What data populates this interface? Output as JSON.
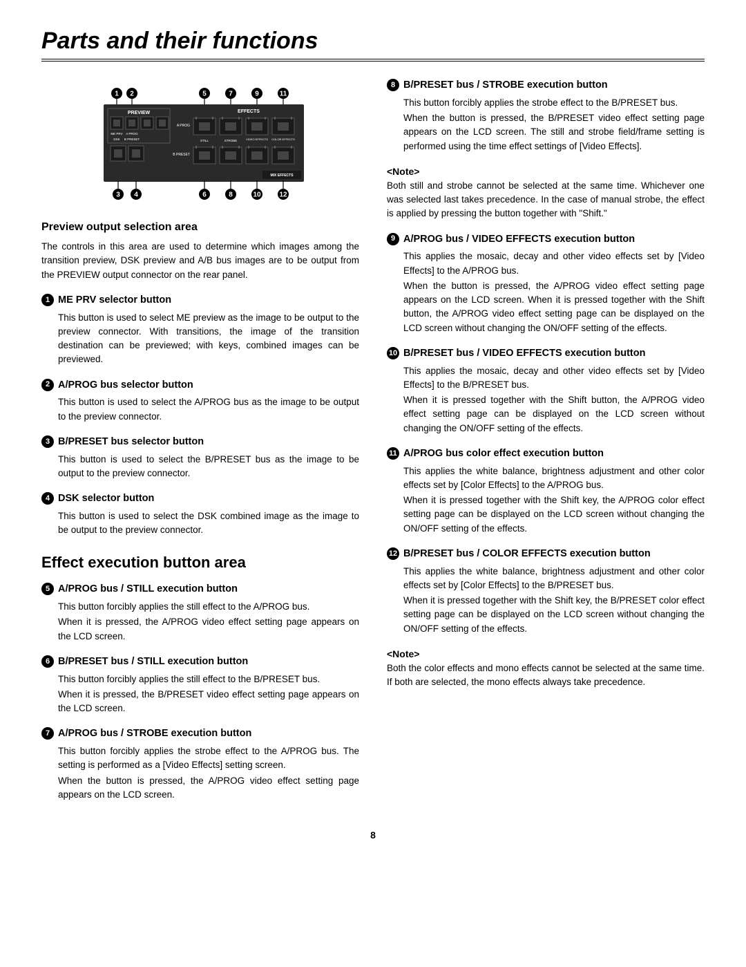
{
  "page_title": "Parts and their functions",
  "page_number": "8",
  "diagram": {
    "top_callouts": [
      "1",
      "2",
      "5",
      "7",
      "9",
      "11"
    ],
    "bottom_callouts": [
      "3",
      "4",
      "6",
      "8",
      "10",
      "12"
    ],
    "labels": {
      "preview": "PREVIEW",
      "effects": "EFFECTS",
      "me_prv": "ME PRV",
      "a_prog_top": "A PROG",
      "dsk": "DSK",
      "b_preset_left": "B PRESET",
      "a_prog": "A PROG",
      "b_preset": "B PRESET",
      "still": "STILL",
      "strobe": "STROBE",
      "video_effects": "VIDEO EFFECTS",
      "color_effects": "COLOR EFFECTS",
      "mix_effects": "MIX EFFECTS"
    }
  },
  "left_col": {
    "preview_area_title": "Preview output selection area",
    "preview_area_intro": "The controls in this area are used to determine which images among the transition preview, DSK preview and A/B bus images are to be output from the PREVIEW output connector on the rear panel.",
    "items": [
      {
        "num": "1",
        "title": "ME PRV selector button",
        "body": "This button is used to select ME preview as the image to be output to the preview connector.  With transitions, the image of the transition destination can be previewed; with keys, combined images can be previewed."
      },
      {
        "num": "2",
        "title": "A/PROG bus selector button",
        "body": "This button is used to select the A/PROG bus as the image to be output to the preview connector."
      },
      {
        "num": "3",
        "title": "B/PRESET bus selector button",
        "body": "This button is used to select the B/PRESET bus as the image to be output to the preview connector."
      },
      {
        "num": "4",
        "title": "DSK selector button",
        "body": "This button is used to select the DSK combined image as the image to be output to the preview connector."
      }
    ],
    "effect_heading": "Effect execution button area",
    "effect_items": [
      {
        "num": "5",
        "title": "A/PROG bus / STILL execution button",
        "body": "This button forcibly applies the still effect to the A/PROG bus.\nWhen it is pressed, the A/PROG video effect setting page appears on the LCD screen."
      },
      {
        "num": "6",
        "title": "B/PRESET bus / STILL execution button",
        "body": "This button forcibly applies the still effect to the B/PRESET bus.\nWhen it is pressed, the B/PRESET video effect setting page appears on the LCD screen."
      },
      {
        "num": "7",
        "title": "A/PROG bus / STROBE execution button",
        "body": "This button forcibly applies the strobe effect to the A/PROG bus.  The setting is performed as a [Video Effects] setting screen.\nWhen the button is pressed, the A/PROG video effect setting page appears on the LCD screen."
      }
    ]
  },
  "right_col": {
    "items": [
      {
        "num": "8",
        "title": "B/PRESET bus / STROBE execution button",
        "body": "This button forcibly applies the strobe effect to the B/PRESET bus.\nWhen the button is pressed, the B/PRESET video effect setting page appears on the LCD screen.  The still and strobe field/frame setting is performed using the time effect settings of [Video Effects]."
      }
    ],
    "note1_head": "<Note>",
    "note1_body": "Both still and strobe cannot be selected at the same time.  Whichever one was selected last takes precedence.  In the case of manual strobe, the effect is applied by pressing the button together with \"Shift.\"",
    "items2": [
      {
        "num": "9",
        "title": "A/PROG bus / VIDEO EFFECTS execution button",
        "body": "This applies the mosaic, decay and other video effects set by [Video Effects] to the A/PROG bus.\nWhen the button is pressed, the A/PROG video effect setting page appears on the LCD screen.  When it is pressed together with the Shift button, the A/PROG video effect setting page can be displayed on the LCD screen without changing the ON/OFF setting of the effects."
      },
      {
        "num": "10",
        "title": "B/PRESET bus / VIDEO EFFECTS execution button",
        "body": "This applies the mosaic, decay and other video effects set by [Video Effects] to the B/PRESET bus.\nWhen it is pressed together with the Shift button, the A/PROG video effect setting page can be displayed on the LCD screen without changing the ON/OFF setting of the effects."
      },
      {
        "num": "11",
        "title": "A/PROG bus color effect execution button",
        "body": "This applies the white balance, brightness adjustment and other color effects set by [Color Effects] to the A/PROG bus.\nWhen it is pressed together with the Shift key, the A/PROG color effect setting page can be displayed on the LCD screen without changing the ON/OFF setting of the effects."
      },
      {
        "num": "12",
        "title": "B/PRESET bus / COLOR EFFECTS execution button",
        "body": "This applies the white balance, brightness adjustment and other color effects set by [Color Effects] to the B/PRESET bus.\nWhen it is pressed together with the Shift key, the B/PRESET color effect setting page can be displayed on the LCD screen without changing the ON/OFF setting of the effects."
      }
    ],
    "note2_head": "<Note>",
    "note2_body": "Both the color effects and mono effects cannot be selected at the same time.  If both are selected, the mono effects always take precedence."
  }
}
